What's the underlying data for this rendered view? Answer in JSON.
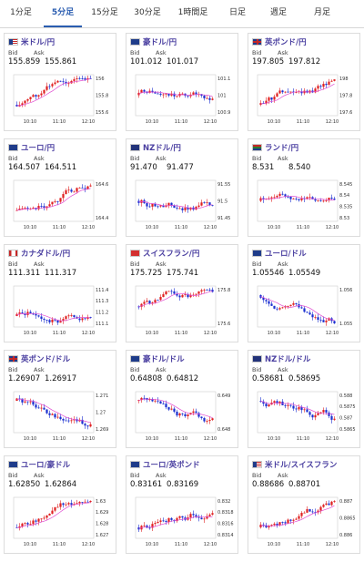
{
  "tabs": [
    {
      "label": "1分足",
      "active": false
    },
    {
      "label": "5分足",
      "active": true
    },
    {
      "label": "15分足",
      "active": false
    },
    {
      "label": "30分足",
      "active": false
    },
    {
      "label": "1時間足",
      "active": false
    },
    {
      "label": "日足",
      "active": false
    },
    {
      "label": "週足",
      "active": false
    },
    {
      "label": "月足",
      "active": false
    }
  ],
  "colors": {
    "accent": "#2a5db0",
    "pair_title": "#4a3fa0",
    "candle_up": "#e02020",
    "candle_down": "#1a2fd0",
    "moving_average": "#e04ad0"
  },
  "bid_label": "Bid",
  "ask_label": "Ask",
  "x_ticks": [
    "10:10",
    "11:10",
    "12:10"
  ],
  "cards": [
    {
      "pair": "米ドル/円",
      "flag": "us",
      "bid": "155.859",
      "ask": "155.861",
      "yticks": [
        "156",
        "155.8",
        "155.6"
      ],
      "trend": "up"
    },
    {
      "pair": "豪ドル/円",
      "flag": "au",
      "bid": "101.012",
      "ask": "101.017",
      "yticks": [
        "101.1",
        "101",
        "100.9"
      ],
      "trend": "flat"
    },
    {
      "pair": "英ポンド/円",
      "flag": "gb",
      "bid": "197.805",
      "ask": "197.812",
      "yticks": [
        "198",
        "197.8",
        "197.6"
      ],
      "trend": "up"
    },
    {
      "pair": "ユーロ/円",
      "flag": "eu",
      "bid": "164.507",
      "ask": "164.511",
      "yticks": [
        "164.6",
        "164.4"
      ],
      "trend": "up"
    },
    {
      "pair": "NZドル/円",
      "flag": "nz",
      "bid": "91.470",
      "ask": "91.477",
      "yticks": [
        "91.55",
        "91.5",
        "91.45"
      ],
      "trend": "flat"
    },
    {
      "pair": "ランド/円",
      "flag": "za",
      "bid": "8.531",
      "ask": "8.540",
      "yticks": [
        "8.545",
        "8.54",
        "8.535",
        "8.53"
      ],
      "trend": "flat"
    },
    {
      "pair": "カナダドル/円",
      "flag": "ca",
      "bid": "111.311",
      "ask": "111.317",
      "yticks": [
        "111.4",
        "111.3",
        "111.2",
        "111.1"
      ],
      "trend": "up"
    },
    {
      "pair": "スイスフラン/円",
      "flag": "ch",
      "bid": "175.725",
      "ask": "175.741",
      "yticks": [
        "175.8",
        "175.6"
      ],
      "trend": "flat"
    },
    {
      "pair": "ユーロ/ドル",
      "flag": "eu",
      "bid": "1.05546",
      "ask": "1.05549",
      "yticks": [
        "1.056",
        "1.055"
      ],
      "trend": "down"
    },
    {
      "pair": "英ポンド/ドル",
      "flag": "gb",
      "bid": "1.26907",
      "ask": "1.26917",
      "yticks": [
        "1.271",
        "1.27",
        "1.269"
      ],
      "trend": "down"
    },
    {
      "pair": "豪ドル/ドル",
      "flag": "au",
      "bid": "0.64808",
      "ask": "0.64812",
      "yticks": [
        "0.649",
        "0.648"
      ],
      "trend": "down"
    },
    {
      "pair": "NZドル/ドル",
      "flag": "nz",
      "bid": "0.58681",
      "ask": "0.58695",
      "yticks": [
        "0.588",
        "0.5875",
        "0.587",
        "0.5865"
      ],
      "trend": "down"
    },
    {
      "pair": "ユーロ/豪ドル",
      "flag": "eu",
      "bid": "1.62850",
      "ask": "1.62864",
      "yticks": [
        "1.63",
        "1.629",
        "1.628",
        "1.627"
      ],
      "trend": "up"
    },
    {
      "pair": "ユーロ/英ポンド",
      "flag": "eu",
      "bid": "0.83161",
      "ask": "0.83169",
      "yticks": [
        "0.832",
        "0.8318",
        "0.8316",
        "0.8314"
      ],
      "trend": "up"
    },
    {
      "pair": "米ドル/スイスフラン",
      "flag": "us",
      "bid": "0.88686",
      "ask": "0.88701",
      "yticks": [
        "0.887",
        "0.8865",
        "0.886"
      ],
      "trend": "up"
    }
  ]
}
